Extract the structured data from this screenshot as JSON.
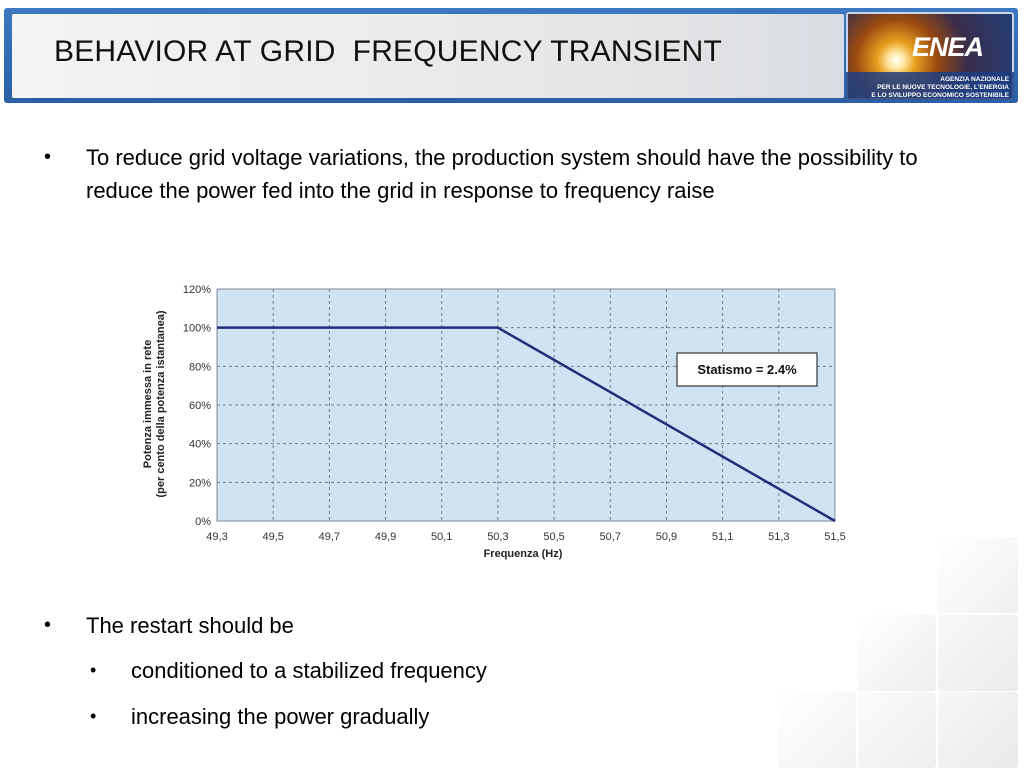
{
  "header": {
    "title": "BEHAVIOR AT GRID  FREQUENCY TRANSIENT",
    "logo": {
      "name": "ENEA",
      "lines": [
        "AGENZIA NAZIONALE",
        "PER LE NUOVE TECNOLOGIE, L'ENERGIA",
        "E LO SVILUPPO ECONOMICO SOSTENIBILE"
      ]
    }
  },
  "bullets": [
    {
      "level": 1,
      "symbol": "•",
      "text": "To reduce grid voltage variations, the production system should have the possibility to reduce the power fed into the grid in response to frequency raise"
    },
    {
      "level": 1,
      "symbol": "•",
      "text": "The restart should be"
    },
    {
      "level": 2,
      "symbol": "•",
      "text": "conditioned to a stabilized frequency"
    },
    {
      "level": 2,
      "symbol": "•",
      "text": "increasing the power gradually"
    }
  ],
  "chart_data": {
    "type": "line",
    "title": "",
    "xlabel": "Frequenza (Hz)",
    "ylabel_lines": [
      "Potenza immessa in rete",
      "(per cento della potenza istantanea)"
    ],
    "x_tick_labels": [
      "49,3",
      "49,5",
      "49,7",
      "49,9",
      "50,1",
      "50,3",
      "50,5",
      "50,7",
      "50,9",
      "51,1",
      "51,3",
      "51,5"
    ],
    "y_tick_labels": [
      "0%",
      "20%",
      "40%",
      "60%",
      "80%",
      "100%",
      "120%"
    ],
    "xlim": [
      49.3,
      51.5
    ],
    "ylim": [
      0,
      120
    ],
    "x_ticks": [
      49.3,
      49.5,
      49.7,
      49.9,
      50.1,
      50.3,
      50.5,
      50.7,
      50.9,
      51.1,
      51.3,
      51.5
    ],
    "y_ticks": [
      0,
      20,
      40,
      60,
      80,
      100,
      120
    ],
    "grid": true,
    "series": [
      {
        "x": [
          49.3,
          50.3,
          51.5
        ],
        "y": [
          100,
          100,
          0
        ]
      }
    ],
    "annotation": "Statismo = 2.4%",
    "colors": {
      "plot_bg": "#cfe3f3",
      "line": "#1f2f7a",
      "grid": "#6f7f8f"
    }
  }
}
